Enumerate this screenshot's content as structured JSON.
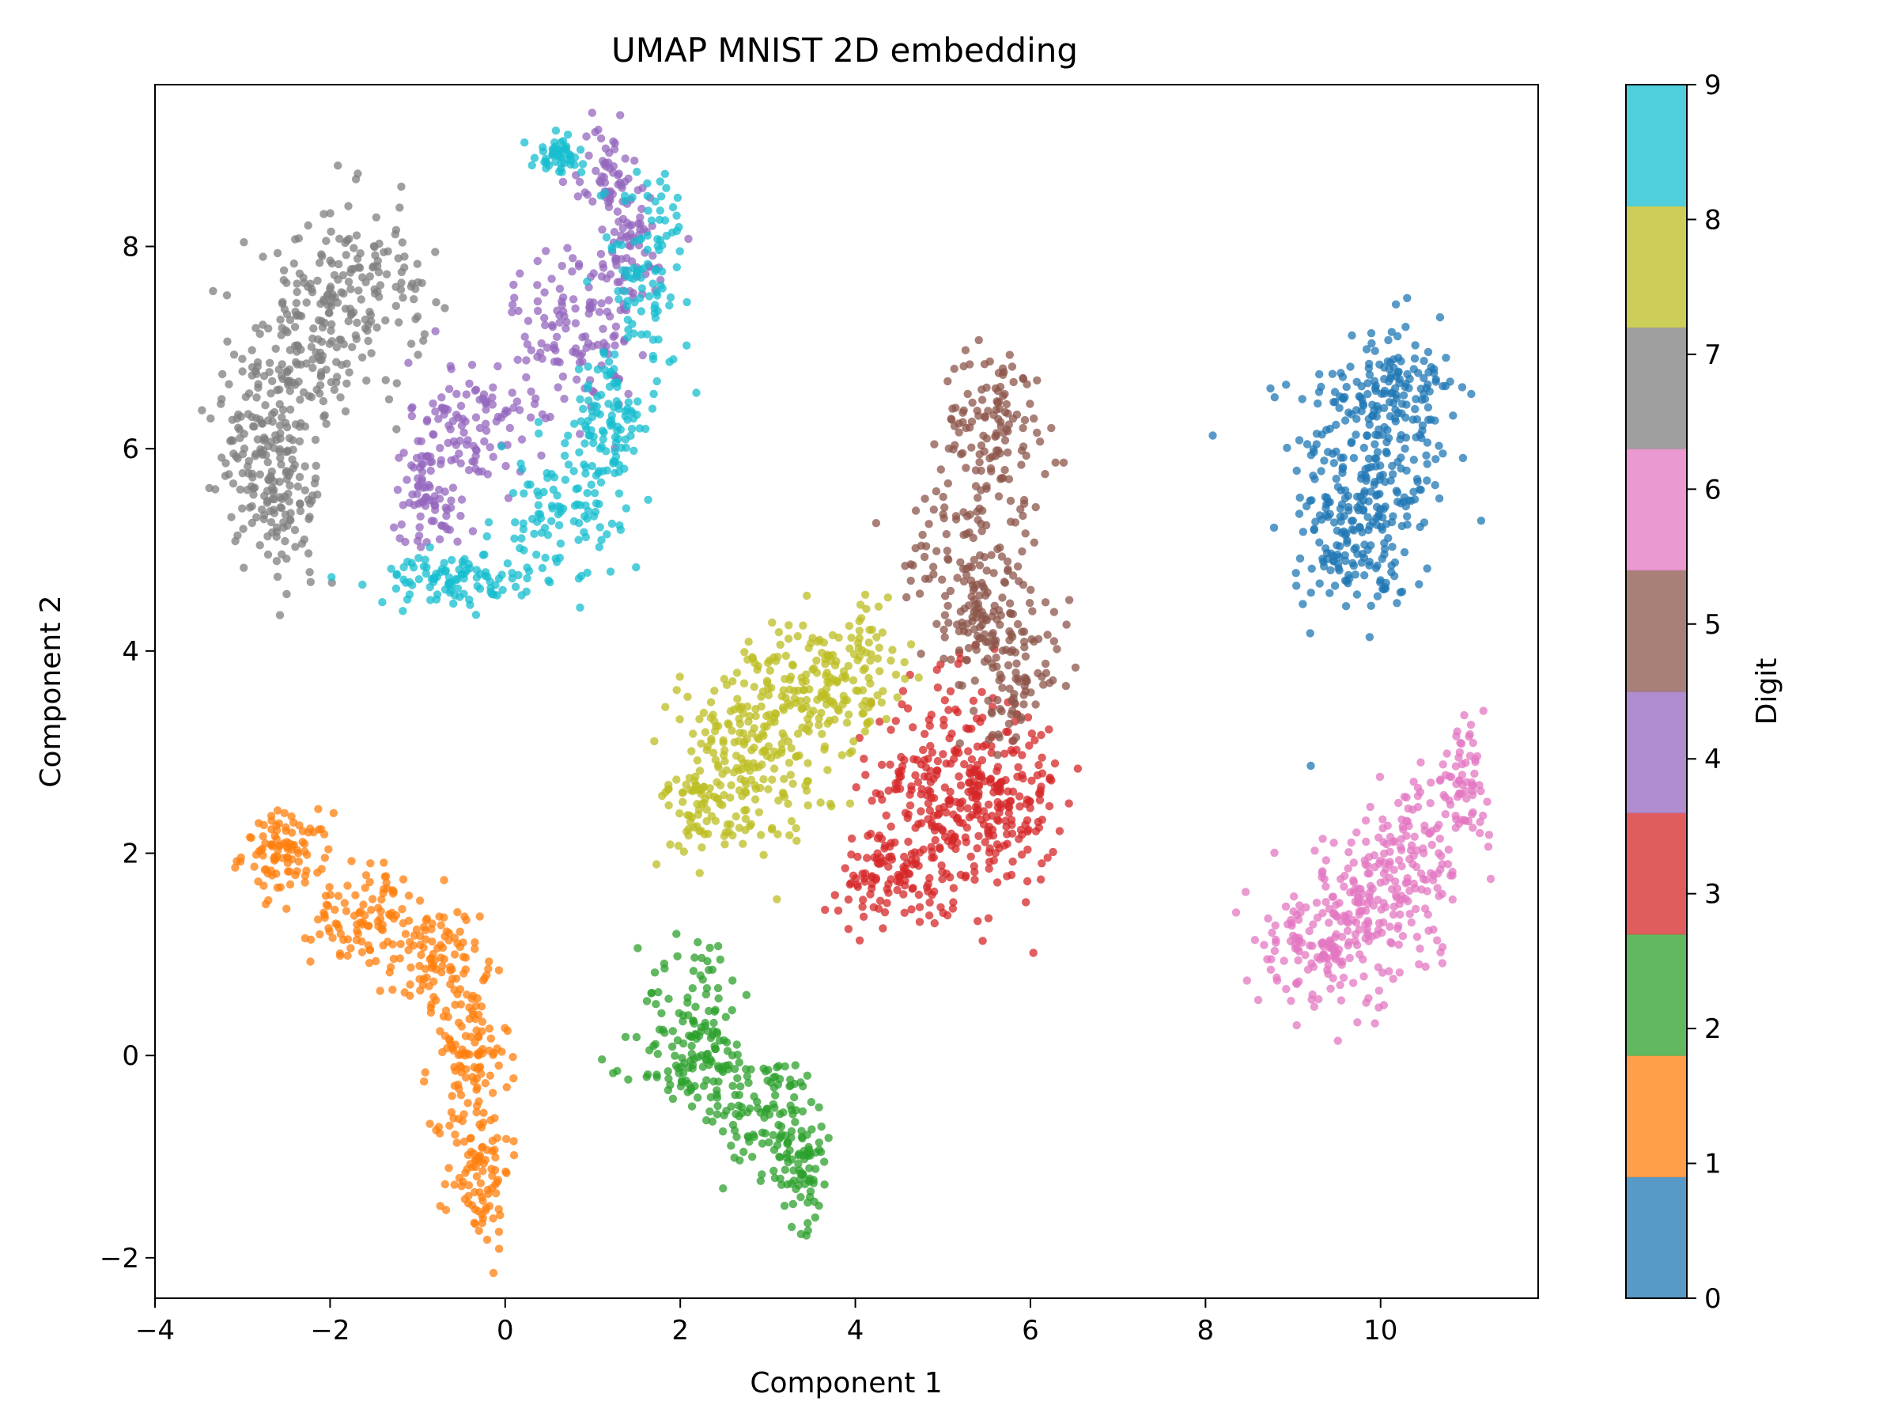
{
  "chart_data": {
    "type": "scatter",
    "title": "UMAP MNIST 2D embedding",
    "xlabel": "Component 1",
    "ylabel": "Component 2",
    "xlim": [
      -4,
      11.8
    ],
    "ylim": [
      -2.4,
      9.6
    ],
    "xticks": [
      -4,
      -2,
      0,
      2,
      4,
      6,
      8,
      10
    ],
    "xtick_labels": [
      "−4",
      "−2",
      "0",
      "2",
      "4",
      "6",
      "8",
      "10"
    ],
    "yticks": [
      -2,
      0,
      2,
      4,
      6,
      8
    ],
    "ytick_labels": [
      "−2",
      "0",
      "2",
      "4",
      "6",
      "8"
    ],
    "grid": false,
    "point_alpha": 0.75,
    "colorbar": {
      "label": "Digit",
      "ticks": [
        "0",
        "1",
        "2",
        "3",
        "4",
        "5",
        "6",
        "7",
        "8",
        "9"
      ],
      "colors": [
        "#1f77b4",
        "#ff7f0e",
        "#2ca02c",
        "#d62728",
        "#9467bd",
        "#8c564b",
        "#e377c2",
        "#7f7f7f",
        "#bcbd22",
        "#17becf"
      ]
    },
    "clusters": [
      {
        "digit": 0,
        "approx_points": 420,
        "regions": [
          {
            "cx": 9.9,
            "cy": 5.8,
            "sx": 0.45,
            "sy": 0.7,
            "w": 3
          },
          {
            "cx": 10.2,
            "cy": 6.6,
            "sx": 0.35,
            "sy": 0.3,
            "w": 1
          },
          {
            "cx": 9.6,
            "cy": 5.0,
            "sx": 0.3,
            "sy": 0.3,
            "w": 1
          }
        ]
      },
      {
        "digit": 1,
        "approx_points": 480,
        "regions": [
          {
            "cx": -2.5,
            "cy": 2.0,
            "sx": 0.25,
            "sy": 0.2,
            "w": 2
          },
          {
            "cx": -1.6,
            "cy": 1.4,
            "sx": 0.3,
            "sy": 0.25,
            "w": 2
          },
          {
            "cx": -0.8,
            "cy": 0.9,
            "sx": 0.25,
            "sy": 0.3,
            "w": 2
          },
          {
            "cx": -0.4,
            "cy": 0.0,
            "sx": 0.22,
            "sy": 0.35,
            "w": 2
          },
          {
            "cx": -0.3,
            "cy": -1.1,
            "sx": 0.18,
            "sy": 0.4,
            "w": 2
          }
        ]
      },
      {
        "digit": 2,
        "approx_points": 330,
        "regions": [
          {
            "cx": 2.2,
            "cy": 0.6,
            "sx": 0.3,
            "sy": 0.35,
            "w": 1
          },
          {
            "cx": 2.2,
            "cy": -0.1,
            "sx": 0.35,
            "sy": 0.25,
            "w": 2
          },
          {
            "cx": 3.1,
            "cy": -0.6,
            "sx": 0.3,
            "sy": 0.3,
            "w": 2
          },
          {
            "cx": 3.4,
            "cy": -1.2,
            "sx": 0.15,
            "sy": 0.25,
            "w": 1
          }
        ]
      },
      {
        "digit": 3,
        "approx_points": 470,
        "regions": [
          {
            "cx": 5.1,
            "cy": 2.6,
            "sx": 0.45,
            "sy": 0.55,
            "w": 3
          },
          {
            "cx": 4.4,
            "cy": 1.8,
            "sx": 0.3,
            "sy": 0.25,
            "w": 1
          },
          {
            "cx": 5.8,
            "cy": 2.5,
            "sx": 0.25,
            "sy": 0.4,
            "w": 1
          }
        ]
      },
      {
        "digit": 4,
        "approx_points": 430,
        "regions": [
          {
            "cx": 1.2,
            "cy": 8.7,
            "sx": 0.18,
            "sy": 0.25,
            "w": 1
          },
          {
            "cx": 0.8,
            "cy": 7.2,
            "sx": 0.35,
            "sy": 0.45,
            "w": 2
          },
          {
            "cx": -0.4,
            "cy": 6.2,
            "sx": 0.35,
            "sy": 0.35,
            "w": 2
          },
          {
            "cx": -0.9,
            "cy": 5.5,
            "sx": 0.2,
            "sy": 0.25,
            "w": 1
          },
          {
            "cx": 1.4,
            "cy": 7.9,
            "sx": 0.25,
            "sy": 0.3,
            "w": 1
          }
        ]
      },
      {
        "digit": 5,
        "approx_points": 380,
        "regions": [
          {
            "cx": 5.6,
            "cy": 6.2,
            "sx": 0.3,
            "sy": 0.4,
            "w": 2
          },
          {
            "cx": 5.2,
            "cy": 5.1,
            "sx": 0.3,
            "sy": 0.35,
            "w": 1
          },
          {
            "cx": 5.5,
            "cy": 4.3,
            "sx": 0.4,
            "sy": 0.35,
            "w": 2
          },
          {
            "cx": 5.8,
            "cy": 3.6,
            "sx": 0.2,
            "sy": 0.3,
            "w": 1
          }
        ]
      },
      {
        "digit": 6,
        "approx_points": 420,
        "regions": [
          {
            "cx": 9.7,
            "cy": 1.3,
            "sx": 0.45,
            "sy": 0.4,
            "w": 3
          },
          {
            "cx": 10.4,
            "cy": 2.0,
            "sx": 0.35,
            "sy": 0.35,
            "w": 2
          },
          {
            "cx": 10.9,
            "cy": 2.7,
            "sx": 0.15,
            "sy": 0.25,
            "w": 1
          },
          {
            "cx": 9.1,
            "cy": 1.0,
            "sx": 0.25,
            "sy": 0.25,
            "w": 1
          }
        ]
      },
      {
        "digit": 7,
        "approx_points": 470,
        "regions": [
          {
            "cx": -2.8,
            "cy": 6.0,
            "sx": 0.25,
            "sy": 0.4,
            "w": 2
          },
          {
            "cx": -2.3,
            "cy": 7.0,
            "sx": 0.35,
            "sy": 0.45,
            "w": 2
          },
          {
            "cx": -1.6,
            "cy": 7.6,
            "sx": 0.35,
            "sy": 0.4,
            "w": 2
          },
          {
            "cx": -2.5,
            "cy": 5.3,
            "sx": 0.2,
            "sy": 0.3,
            "w": 1
          }
        ]
      },
      {
        "digit": 8,
        "approx_points": 440,
        "regions": [
          {
            "cx": 2.8,
            "cy": 3.0,
            "sx": 0.45,
            "sy": 0.45,
            "w": 3
          },
          {
            "cx": 3.5,
            "cy": 3.6,
            "sx": 0.35,
            "sy": 0.35,
            "w": 2
          },
          {
            "cx": 2.3,
            "cy": 2.4,
            "sx": 0.25,
            "sy": 0.2,
            "w": 1
          },
          {
            "cx": 4.1,
            "cy": 3.9,
            "sx": 0.3,
            "sy": 0.3,
            "w": 1
          }
        ]
      },
      {
        "digit": 9,
        "approx_points": 450,
        "regions": [
          {
            "cx": 0.6,
            "cy": 5.3,
            "sx": 0.35,
            "sy": 0.35,
            "w": 2
          },
          {
            "cx": -0.6,
            "cy": 4.7,
            "sx": 0.45,
            "sy": 0.12,
            "w": 2
          },
          {
            "cx": 1.2,
            "cy": 6.2,
            "sx": 0.2,
            "sy": 0.4,
            "w": 2
          },
          {
            "cx": 1.6,
            "cy": 7.8,
            "sx": 0.25,
            "sy": 0.5,
            "w": 2
          },
          {
            "cx": 0.6,
            "cy": 8.9,
            "sx": 0.15,
            "sy": 0.08,
            "w": 1
          }
        ]
      }
    ]
  }
}
